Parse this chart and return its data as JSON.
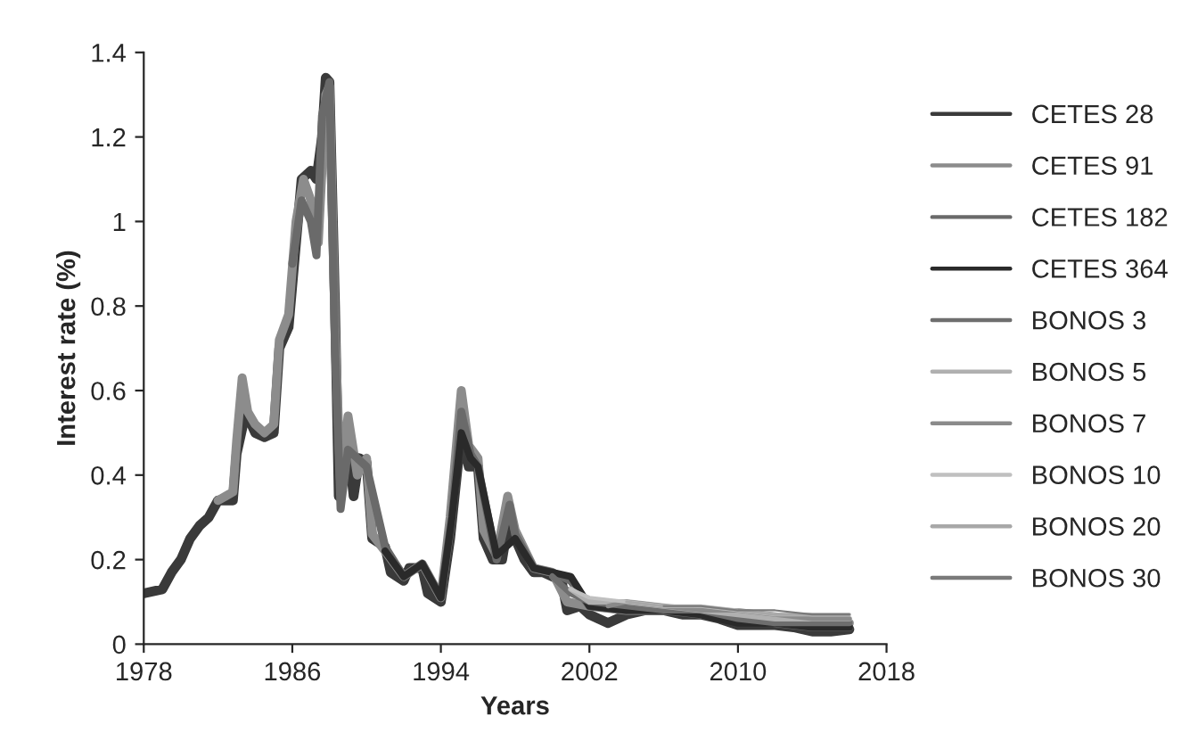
{
  "chart_data": {
    "type": "line",
    "xlabel": "Years",
    "ylabel": "Interest rate (%)",
    "xlim": [
      1978,
      2018
    ],
    "xticks": [
      1978,
      1986,
      1994,
      2002,
      2010,
      2018
    ],
    "ylim": [
      0,
      1.4
    ],
    "yticks": [
      0,
      0.2,
      0.4,
      0.6,
      0.8,
      1,
      1.2,
      1.4
    ],
    "grid": false,
    "legend": "right",
    "line_style": "solid",
    "marker": "none",
    "series": [
      {
        "name": "CETES 28",
        "color": "#3a3a3a",
        "x": [
          1978,
          1979,
          1979.5,
          1980,
          1980.5,
          1981,
          1981.5,
          1982,
          1982.8,
          1983,
          1983.5,
          1984,
          1984.5,
          1985,
          1985.3,
          1985.8,
          1986.2,
          1986.5,
          1987,
          1987.3,
          1987.6,
          1987.8,
          1988,
          1988.3,
          1988.5,
          1989,
          1989.3,
          1989.6,
          1990,
          1990.3,
          1991,
          1991.3,
          1992,
          1992.3,
          1993,
          1993.3,
          1994,
          1994.5,
          1995.1,
          1995.5,
          1996,
          1996.3,
          1996.8,
          1997.3,
          1997.6,
          1998,
          1998.5,
          1999,
          1999.5,
          2000,
          2000.5,
          2000.8,
          2001.5,
          2002,
          2003,
          2004,
          2005,
          2006,
          2007,
          2008,
          2009,
          2010,
          2011,
          2012,
          2013,
          2014,
          2015,
          2016
        ],
        "values": [
          0.12,
          0.13,
          0.17,
          0.2,
          0.25,
          0.28,
          0.3,
          0.34,
          0.34,
          0.45,
          0.55,
          0.5,
          0.49,
          0.5,
          0.7,
          0.75,
          0.95,
          1.1,
          1.12,
          1.1,
          1.2,
          1.34,
          1.33,
          0.8,
          0.35,
          0.48,
          0.35,
          0.44,
          0.43,
          0.25,
          0.23,
          0.17,
          0.15,
          0.18,
          0.18,
          0.12,
          0.1,
          0.25,
          0.5,
          0.42,
          0.42,
          0.25,
          0.2,
          0.2,
          0.28,
          0.25,
          0.2,
          0.17,
          0.17,
          0.16,
          0.15,
          0.08,
          0.09,
          0.07,
          0.05,
          0.07,
          0.08,
          0.08,
          0.07,
          0.07,
          0.06,
          0.045,
          0.045,
          0.045,
          0.04,
          0.03,
          0.03,
          0.035
        ]
      },
      {
        "name": "CETES 91",
        "color": "#8c8c8c",
        "x": [
          1982,
          1982.8,
          1983,
          1983.3,
          1983.6,
          1984,
          1984.5,
          1985,
          1985.3,
          1985.8,
          1986.2,
          1986.6,
          1987,
          1987.4,
          1987.8,
          1988,
          1988.3,
          1988.6,
          1989,
          1989.5,
          1990,
          1990.3,
          1991,
          1992,
          1993,
          1994,
          1994.5,
          1995.1,
          1995.5,
          1996,
          1996.3,
          1997,
          1997.6,
          1998,
          1999,
          2000,
          2000.8,
          2002,
          2004,
          2006,
          2008,
          2010,
          2012,
          2014,
          2016
        ],
        "values": [
          0.34,
          0.36,
          0.48,
          0.63,
          0.55,
          0.52,
          0.5,
          0.52,
          0.72,
          0.78,
          1.0,
          1.1,
          1.05,
          0.95,
          1.3,
          1.32,
          0.75,
          0.38,
          0.54,
          0.4,
          0.44,
          0.26,
          0.22,
          0.16,
          0.19,
          0.11,
          0.3,
          0.6,
          0.47,
          0.44,
          0.27,
          0.21,
          0.35,
          0.27,
          0.18,
          0.17,
          0.1,
          0.09,
          0.08,
          0.08,
          0.08,
          0.07,
          0.06,
          0.05,
          0.05
        ]
      },
      {
        "name": "CETES 182",
        "color": "#6a6a6a",
        "x": [
          1986,
          1986.5,
          1987,
          1987.3,
          1987.6,
          1988,
          1988.3,
          1988.6,
          1989,
          1990,
          1991,
          1992,
          1993,
          1994,
          1994.6,
          1995.1,
          1995.6,
          1996,
          1997,
          1997.7,
          1998,
          1999,
          2000,
          2001,
          2002,
          2004,
          2006,
          2008,
          2010,
          2012,
          2014,
          2016
        ],
        "values": [
          0.9,
          1.05,
          1.0,
          0.92,
          1.25,
          1.33,
          0.7,
          0.32,
          0.46,
          0.42,
          0.23,
          0.16,
          0.19,
          0.11,
          0.3,
          0.55,
          0.45,
          0.42,
          0.2,
          0.33,
          0.26,
          0.18,
          0.17,
          0.15,
          0.09,
          0.08,
          0.08,
          0.07,
          0.06,
          0.05,
          0.04,
          0.04
        ]
      },
      {
        "name": "CETES 364",
        "color": "#2a2a2a",
        "x": [
          1991,
          1992,
          1993,
          1994,
          1994.6,
          1995.1,
          1995.6,
          1996,
          1997,
          1998,
          1999,
          2000,
          2001,
          2002,
          2004,
          2006,
          2008,
          2010,
          2012,
          2014,
          2016
        ],
        "values": [
          0.22,
          0.16,
          0.19,
          0.11,
          0.3,
          0.5,
          0.44,
          0.42,
          0.21,
          0.25,
          0.18,
          0.17,
          0.16,
          0.09,
          0.08,
          0.08,
          0.07,
          0.05,
          0.05,
          0.04,
          0.04
        ]
      },
      {
        "name": "BONOS 3",
        "color": "#6e6e6e",
        "x": [
          2000,
          2001,
          2002,
          2004,
          2006,
          2008,
          2010,
          2012,
          2014,
          2016
        ],
        "values": [
          0.16,
          0.12,
          0.1,
          0.09,
          0.08,
          0.08,
          0.06,
          0.05,
          0.05,
          0.05
        ]
      },
      {
        "name": "BONOS 5",
        "color": "#b0b0b0",
        "x": [
          2001,
          2002,
          2004,
          2006,
          2008,
          2010,
          2012,
          2014,
          2016
        ],
        "values": [
          0.13,
          0.1,
          0.1,
          0.09,
          0.08,
          0.07,
          0.06,
          0.06,
          0.06
        ]
      },
      {
        "name": "BONOS 7",
        "color": "#8a8a8a",
        "x": [
          2003,
          2004,
          2006,
          2008,
          2010,
          2012,
          2014,
          2016
        ],
        "values": [
          0.09,
          0.1,
          0.09,
          0.08,
          0.08,
          0.07,
          0.06,
          0.06
        ]
      },
      {
        "name": "BONOS 10",
        "color": "#c0c0c0",
        "x": [
          2001,
          2002,
          2004,
          2006,
          2008,
          2010,
          2012,
          2014,
          2016
        ],
        "values": [
          0.13,
          0.11,
          0.1,
          0.09,
          0.09,
          0.08,
          0.07,
          0.07,
          0.07
        ]
      },
      {
        "name": "BONOS 20",
        "color": "#a8a8a8",
        "x": [
          2004,
          2006,
          2008,
          2010,
          2012,
          2014,
          2016
        ],
        "values": [
          0.1,
          0.09,
          0.09,
          0.08,
          0.07,
          0.07,
          0.07
        ]
      },
      {
        "name": "BONOS 30",
        "color": "#7a7a7a",
        "x": [
          2006,
          2008,
          2010,
          2012,
          2014,
          2016
        ],
        "values": [
          0.09,
          0.09,
          0.08,
          0.08,
          0.07,
          0.07
        ]
      }
    ]
  }
}
